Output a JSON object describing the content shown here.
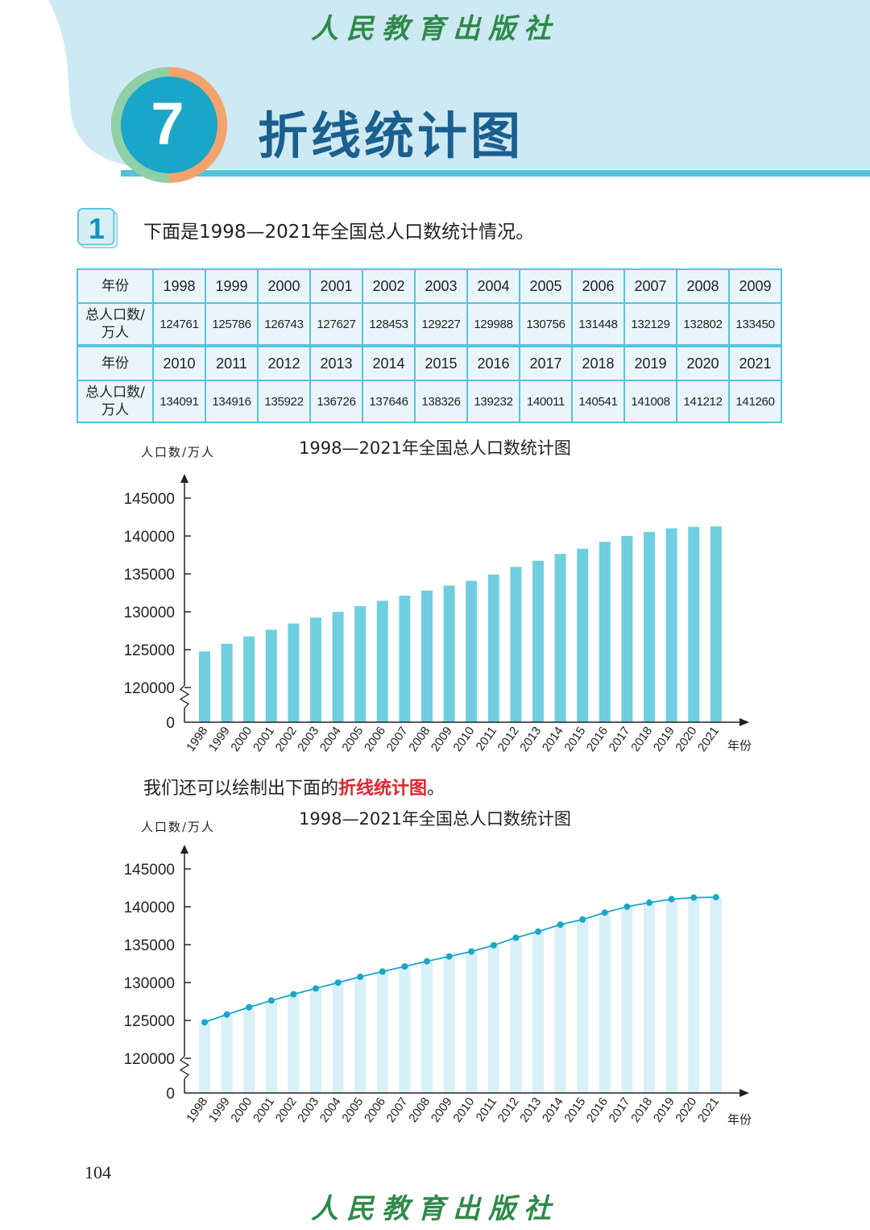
{
  "header": {
    "publisher": "人民教育出版社",
    "chapter_number": "7",
    "chapter_title": "折线统计图"
  },
  "colors": {
    "banner": "#cde9f3",
    "accent_teal": "#4fc3d8",
    "bar": "#6fcfe0",
    "bar_light": "#d8f0f7",
    "line": "#1aa6c8",
    "highlight": "#e0242b"
  },
  "question": {
    "number": "1",
    "text": "下面是1998—2021年全国总人口数统计情况。"
  },
  "table": {
    "year_header": "年份",
    "pop_header_line1": "总人口数/",
    "pop_header_line2": "万人",
    "rows": [
      {
        "years": [
          "1998",
          "1999",
          "2000",
          "2001",
          "2002",
          "2003",
          "2004",
          "2005",
          "2006",
          "2007",
          "2008",
          "2009"
        ],
        "values": [
          "124761",
          "125786",
          "126743",
          "127627",
          "128453",
          "129227",
          "129988",
          "130756",
          "131448",
          "132129",
          "132802",
          "133450"
        ]
      },
      {
        "years": [
          "2010",
          "2011",
          "2012",
          "2013",
          "2014",
          "2015",
          "2016",
          "2017",
          "2018",
          "2019",
          "2020",
          "2021"
        ],
        "values": [
          "134091",
          "134916",
          "135922",
          "136726",
          "137646",
          "138326",
          "139232",
          "140011",
          "140541",
          "141008",
          "141212",
          "141260"
        ]
      }
    ]
  },
  "transition": {
    "before": "我们还可以绘制出下面的",
    "highlight": "折线统计图",
    "after": "。"
  },
  "chart_data": [
    {
      "type": "bar",
      "title": "1998—2021年全国总人口数统计图",
      "ylabel": "人口数/万人",
      "xlabel": "年份",
      "categories": [
        "1998",
        "1999",
        "2000",
        "2001",
        "2002",
        "2003",
        "2004",
        "2005",
        "2006",
        "2007",
        "2008",
        "2009",
        "2010",
        "2011",
        "2012",
        "2013",
        "2014",
        "2015",
        "2016",
        "2017",
        "2018",
        "2019",
        "2020",
        "2021"
      ],
      "values": [
        124761,
        125786,
        126743,
        127627,
        128453,
        129227,
        129988,
        130756,
        131448,
        132129,
        132802,
        133450,
        134091,
        134916,
        135922,
        136726,
        137646,
        138326,
        139232,
        140011,
        140541,
        141008,
        141212,
        141260
      ],
      "yticks": [
        "0",
        "120000",
        "125000",
        "130000",
        "135000",
        "140000",
        "145000"
      ],
      "axis_break": true,
      "ylim": [
        115000,
        145000
      ]
    },
    {
      "type": "line",
      "title": "1998—2021年全国总人口数统计图",
      "ylabel": "人口数/万人",
      "xlabel": "年份",
      "categories": [
        "1998",
        "1999",
        "2000",
        "2001",
        "2002",
        "2003",
        "2004",
        "2005",
        "2006",
        "2007",
        "2008",
        "2009",
        "2010",
        "2011",
        "2012",
        "2013",
        "2014",
        "2015",
        "2016",
        "2017",
        "2018",
        "2019",
        "2020",
        "2021"
      ],
      "values": [
        124761,
        125786,
        126743,
        127627,
        128453,
        129227,
        129988,
        130756,
        131448,
        132129,
        132802,
        133450,
        134091,
        134916,
        135922,
        136726,
        137646,
        138326,
        139232,
        140011,
        140541,
        141008,
        141212,
        141260
      ],
      "yticks": [
        "0",
        "120000",
        "125000",
        "130000",
        "135000",
        "140000",
        "145000"
      ],
      "axis_break": true,
      "ylim": [
        115000,
        145000
      ]
    }
  ],
  "footer": {
    "page_number": "104"
  }
}
